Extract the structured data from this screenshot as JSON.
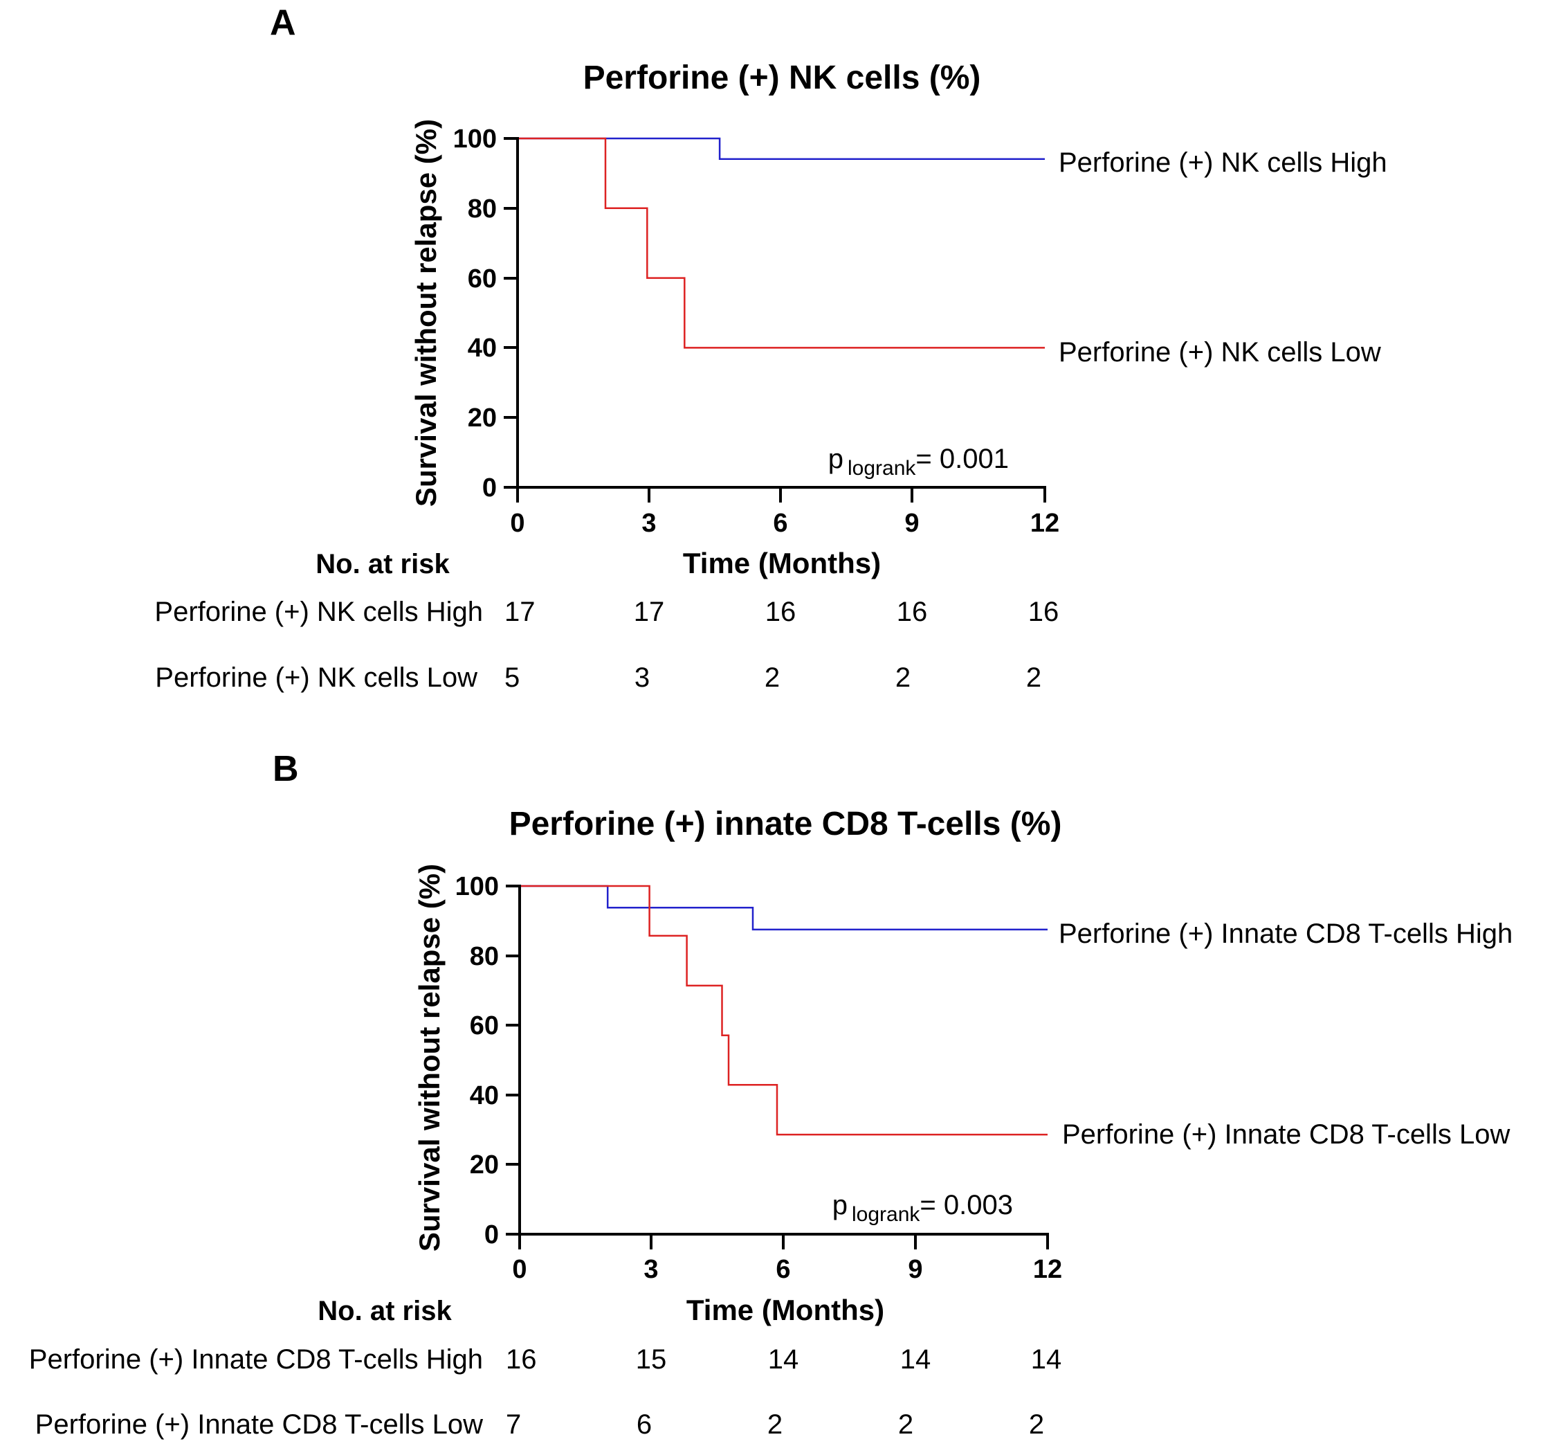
{
  "figure": {
    "panels": [
      {
        "letter": "A",
        "title": "Perforine (+) NK cells (%)",
        "ylabel": "Survival without relapse (%)",
        "xlabel": "Time (Months)",
        "pvalue": {
          "prefix": "p",
          "subscript": "logrank",
          "value": "= 0.001"
        },
        "risk_table": {
          "header": "No. at risk",
          "rows": [
            {
              "label": "Perforine (+) NK cells High",
              "values": [
                "17",
                "17",
                "16",
                "16",
                "16"
              ]
            },
            {
              "label": "Perforine (+) NK cells Low",
              "values": [
                "5",
                "3",
                "2",
                "2",
                "2"
              ]
            }
          ]
        }
      },
      {
        "letter": "B",
        "title": "Perforine (+) innate CD8 T-cells (%)",
        "ylabel": "Survival without relapse (%)",
        "xlabel": "Time (Months)",
        "pvalue": {
          "prefix": "p",
          "subscript": "logrank",
          "value": "= 0.003"
        },
        "risk_table": {
          "header": "No. at risk",
          "rows": [
            {
              "label": "Perforine (+) Innate CD8 T-cells High",
              "values": [
                "16",
                "15",
                "14",
                "14",
                "14"
              ]
            },
            {
              "label": "Perforine (+) Innate CD8 T-cells Low",
              "values": [
                "7",
                "6",
                "2",
                "2",
                "2"
              ]
            }
          ]
        }
      }
    ]
  },
  "chart_data": [
    {
      "type": "line",
      "step": true,
      "title": "Perforine (+) NK cells (%)",
      "xlabel": "Time (Months)",
      "ylabel": "Survival without relapse (%)",
      "xlim": [
        0,
        12
      ],
      "ylim": [
        0,
        100
      ],
      "xticks": [
        0,
        3,
        6,
        9,
        12
      ],
      "yticks": [
        0,
        20,
        40,
        60,
        80,
        100
      ],
      "series": [
        {
          "name": "Perforine (+) NK cells High",
          "color": "#2222cc",
          "x": [
            0,
            4.6,
            12
          ],
          "y": [
            100,
            94.1,
            94.1
          ]
        },
        {
          "name": "Perforine (+) NK cells Low",
          "color": "#dd2222",
          "x": [
            0,
            2.0,
            2.95,
            3.8,
            12
          ],
          "y": [
            100,
            80,
            60,
            40,
            40
          ]
        }
      ]
    },
    {
      "type": "line",
      "step": true,
      "title": "Perforine (+) innate CD8 T-cells (%)",
      "xlabel": "Time (Months)",
      "ylabel": "Survival without relapse (%)",
      "xlim": [
        0,
        12
      ],
      "ylim": [
        0,
        100
      ],
      "xticks": [
        0,
        3,
        6,
        9,
        12
      ],
      "yticks": [
        0,
        20,
        40,
        60,
        80,
        100
      ],
      "series": [
        {
          "name": "Perforine (+) Innate CD8 T-cells High",
          "color": "#2222cc",
          "x": [
            0,
            2.0,
            5.3,
            12
          ],
          "y": [
            100,
            93.8,
            87.5,
            87.5
          ]
        },
        {
          "name": "Perforine (+) Innate CD8 T-cells Low",
          "color": "#dd2222",
          "x": [
            0,
            2.95,
            3.8,
            4.6,
            4.75,
            5.85,
            12
          ],
          "y": [
            100,
            85.7,
            71.4,
            57.1,
            42.9,
            28.6,
            28.6
          ]
        }
      ]
    }
  ]
}
